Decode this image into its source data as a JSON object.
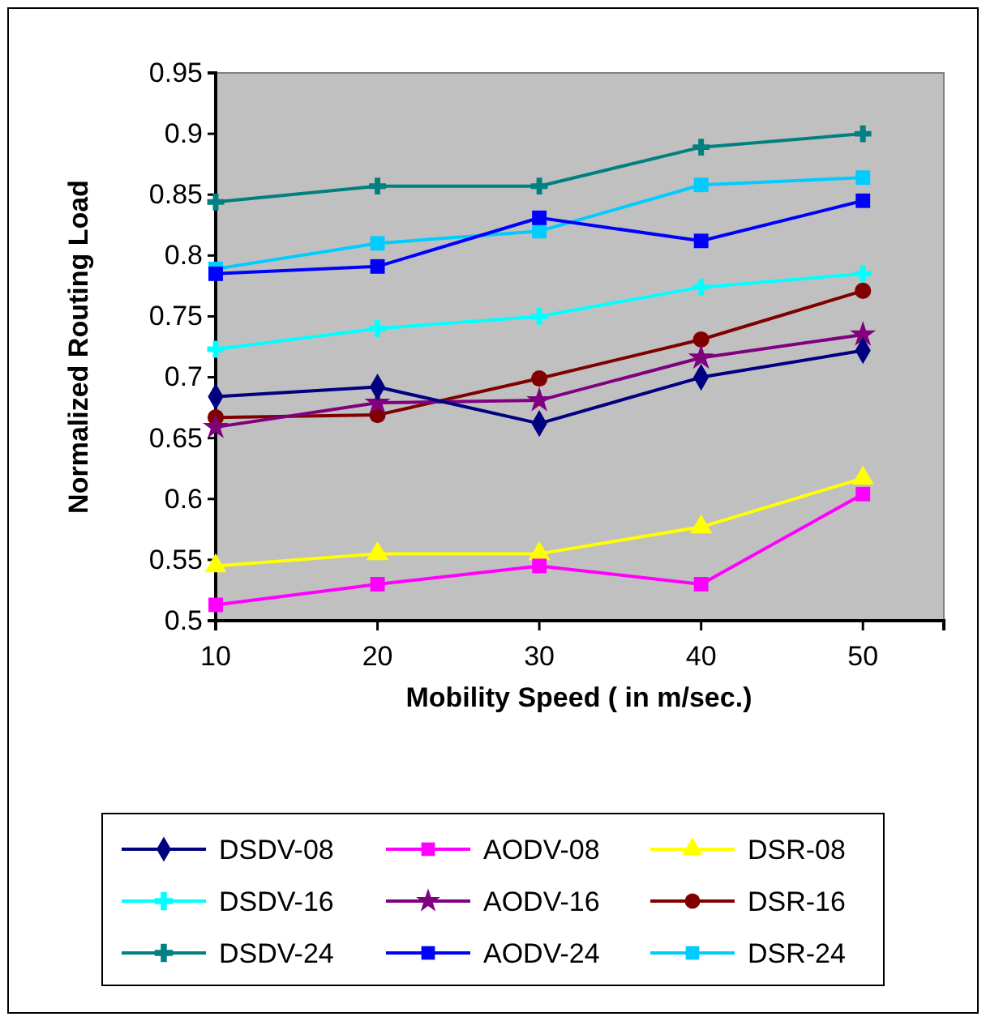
{
  "chart_data": {
    "type": "line",
    "xlabel": "Mobility Speed ( in m/sec.)",
    "ylabel": "Normalized Routing Load",
    "x": [
      10,
      20,
      30,
      40,
      50
    ],
    "xlim": [
      10,
      55
    ],
    "xticks": [
      10,
      20,
      30,
      40,
      50
    ],
    "ylim": [
      0.5,
      0.95
    ],
    "yticks": [
      0.5,
      0.55,
      0.6,
      0.65,
      0.7,
      0.75,
      0.8,
      0.85,
      0.9,
      0.95
    ],
    "grid": false,
    "legend": "bottom",
    "line_style": "solid",
    "series": [
      {
        "name": "DSDV-08",
        "color": "#000080",
        "marker": "diamond",
        "values": [
          0.684,
          0.692,
          0.662,
          0.7,
          0.722
        ]
      },
      {
        "name": "AODV-08",
        "color": "#ff00ff",
        "marker": "square",
        "values": [
          0.513,
          0.53,
          0.545,
          0.53,
          0.604
        ]
      },
      {
        "name": "DSR-08",
        "color": "#ffff00",
        "marker": "triangle",
        "values": [
          0.545,
          0.555,
          0.555,
          0.577,
          0.617
        ]
      },
      {
        "name": "DSDV-16",
        "color": "#00ffff",
        "marker": "cross",
        "values": [
          0.723,
          0.74,
          0.75,
          0.774,
          0.785
        ]
      },
      {
        "name": "AODV-16",
        "color": "#800080",
        "marker": "star",
        "values": [
          0.659,
          0.679,
          0.681,
          0.716,
          0.735
        ]
      },
      {
        "name": "DSR-16",
        "color": "#800000",
        "marker": "circle",
        "values": [
          0.667,
          0.669,
          0.699,
          0.731,
          0.771
        ]
      },
      {
        "name": "DSDV-24",
        "color": "#008080",
        "marker": "cross",
        "values": [
          0.844,
          0.857,
          0.857,
          0.889,
          0.9
        ]
      },
      {
        "name": "AODV-24",
        "color": "#0000ff",
        "marker": "square",
        "values": [
          0.785,
          0.791,
          0.831,
          0.812,
          0.845
        ]
      },
      {
        "name": "DSR-24",
        "color": "#00ccff",
        "marker": "square",
        "values": [
          0.789,
          0.81,
          0.82,
          0.858,
          0.864
        ]
      }
    ]
  }
}
